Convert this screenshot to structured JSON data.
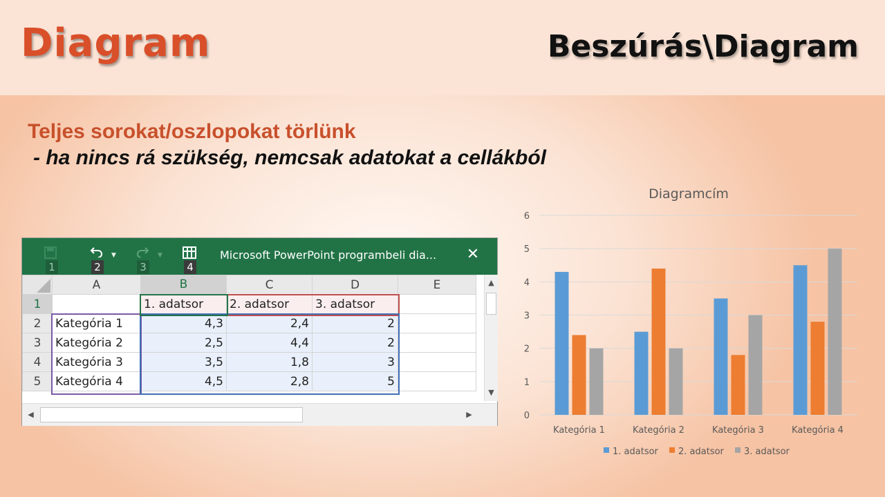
{
  "slide": {
    "title": "Diagram",
    "menu_path": "Beszúrás\\Diagram",
    "bullet_head": "Teljes sorokat/oszlopokat törlünk",
    "bullet_sub": "- ha nincs rá szükség, nemcsak adatokat a cellákból"
  },
  "excel": {
    "window_title": "Microsoft PowerPoint programbeli  dia...",
    "keytips": [
      "1",
      "2",
      "3",
      "4"
    ],
    "close_glyph": "✕",
    "columns": [
      "A",
      "B",
      "C",
      "D",
      "E"
    ],
    "rows": [
      {
        "num": "1",
        "cells": [
          "",
          "1. adatsor",
          "2. adatsor",
          "3. adatsor",
          ""
        ]
      },
      {
        "num": "2",
        "cells": [
          "Kategória 1",
          "4,3",
          "2,4",
          "2",
          ""
        ]
      },
      {
        "num": "3",
        "cells": [
          "Kategória 2",
          "2,5",
          "4,4",
          "2",
          ""
        ]
      },
      {
        "num": "4",
        "cells": [
          "Kategória 3",
          "3,5",
          "1,8",
          "3",
          ""
        ]
      },
      {
        "num": "5",
        "cells": [
          "Kategória 4",
          "4,5",
          "2,8",
          "5",
          ""
        ]
      }
    ],
    "icons": [
      "save-icon",
      "undo-icon",
      "redo-icon",
      "edit-data-grid-icon",
      "close-icon"
    ]
  },
  "chart_data": {
    "type": "bar",
    "title": "Diagramcím",
    "categories": [
      "Kategória 1",
      "Kategória 2",
      "Kategória 3",
      "Kategória 4"
    ],
    "series": [
      {
        "name": "1. adatsor",
        "values": [
          4.3,
          2.5,
          3.5,
          4.5
        ],
        "color": "#5b9bd5"
      },
      {
        "name": "2. adatsor",
        "values": [
          2.4,
          4.4,
          1.8,
          2.8
        ],
        "color": "#ed7d31"
      },
      {
        "name": "3. adatsor",
        "values": [
          2,
          2,
          3,
          5
        ],
        "color": "#a5a5a5"
      }
    ],
    "ylim": [
      0,
      6
    ],
    "yticks": [
      "0",
      "1",
      "2",
      "3",
      "4",
      "5",
      "6"
    ],
    "grid": true,
    "legend": "bottom"
  }
}
